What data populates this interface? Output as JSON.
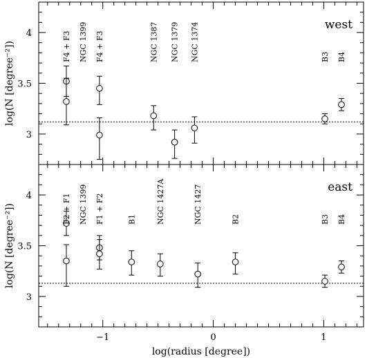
{
  "chart_data": {
    "type": "scatter",
    "xlabel": "log(radius [degree])",
    "xlim": [
      -1.58,
      1.36
    ],
    "x_ticks": [
      -1,
      0,
      1
    ],
    "x_tick_labels": [
      "−1",
      "0",
      "1"
    ],
    "ylim": [
      2.7,
      4.3
    ],
    "y_ticks": [
      3,
      3.5,
      4
    ],
    "y_tick_labels": [
      "3",
      "3.5",
      "4"
    ],
    "panels": [
      {
        "id": "west",
        "label": "west",
        "ylabel": "log(N [degree⁻²])",
        "reference_line": 3.12,
        "points": [
          {
            "x": -1.33,
            "y": 3.52,
            "lo": 3.37,
            "hi": 3.67
          },
          {
            "x": -1.33,
            "y": 3.32,
            "lo": 3.09,
            "hi": 3.55
          },
          {
            "x": -1.03,
            "y": 3.45,
            "lo": 3.29,
            "hi": 3.57
          },
          {
            "x": -1.03,
            "y": 2.99,
            "lo": 2.75,
            "hi": 3.16
          },
          {
            "x": -0.54,
            "y": 3.18,
            "lo": 3.04,
            "hi": 3.28
          },
          {
            "x": -0.35,
            "y": 2.92,
            "lo": 2.76,
            "hi": 3.04
          },
          {
            "x": -0.17,
            "y": 3.06,
            "lo": 2.91,
            "hi": 3.17
          },
          {
            "x": 1.01,
            "y": 3.15,
            "lo": 3.1,
            "hi": 3.2
          },
          {
            "x": 1.16,
            "y": 3.29,
            "lo": 3.23,
            "hi": 3.35
          }
        ],
        "annotations": [
          {
            "x": -1.33,
            "text": "F4 + F3"
          },
          {
            "x": -1.18,
            "text": "NGC 1399"
          },
          {
            "x": -1.03,
            "text": "F4 + F3"
          },
          {
            "x": -0.54,
            "text": "NGC 1387"
          },
          {
            "x": -0.35,
            "text": "NGC 1379"
          },
          {
            "x": -0.17,
            "text": "NGC 1374"
          },
          {
            "x": 1.01,
            "text": "B3"
          },
          {
            "x": 1.16,
            "text": "B4"
          }
        ]
      },
      {
        "id": "east",
        "label": "east",
        "ylabel": "log(N [degree⁻²])",
        "reference_line": 3.13,
        "points": [
          {
            "x": -1.33,
            "y": 3.72,
            "lo": 3.6,
            "hi": 3.84
          },
          {
            "x": -1.33,
            "y": 3.35,
            "lo": 3.1,
            "hi": 3.51
          },
          {
            "x": -1.03,
            "y": 3.48,
            "lo": 3.36,
            "hi": 3.6
          },
          {
            "x": -1.03,
            "y": 3.42,
            "lo": 3.27,
            "hi": 3.56
          },
          {
            "x": -0.74,
            "y": 3.34,
            "lo": 3.21,
            "hi": 3.45
          },
          {
            "x": -0.48,
            "y": 3.32,
            "lo": 3.2,
            "hi": 3.42
          },
          {
            "x": -0.14,
            "y": 3.22,
            "lo": 3.09,
            "hi": 3.33
          },
          {
            "x": 0.2,
            "y": 3.34,
            "lo": 3.22,
            "hi": 3.43
          },
          {
            "x": 1.01,
            "y": 3.15,
            "lo": 3.09,
            "hi": 3.21
          },
          {
            "x": 1.16,
            "y": 3.29,
            "lo": 3.23,
            "hi": 3.35
          }
        ],
        "annotations": [
          {
            "x": -1.33,
            "text": "F2 + F1"
          },
          {
            "x": -1.18,
            "text": "NGC 1399"
          },
          {
            "x": -1.03,
            "text": "F1 + F2"
          },
          {
            "x": -0.74,
            "text": "B1"
          },
          {
            "x": -0.48,
            "text": "NGC 1427A"
          },
          {
            "x": -0.14,
            "text": "NGC 1427"
          },
          {
            "x": 0.2,
            "text": "B2"
          },
          {
            "x": 1.01,
            "text": "B3"
          },
          {
            "x": 1.16,
            "text": "B4"
          }
        ]
      }
    ]
  }
}
